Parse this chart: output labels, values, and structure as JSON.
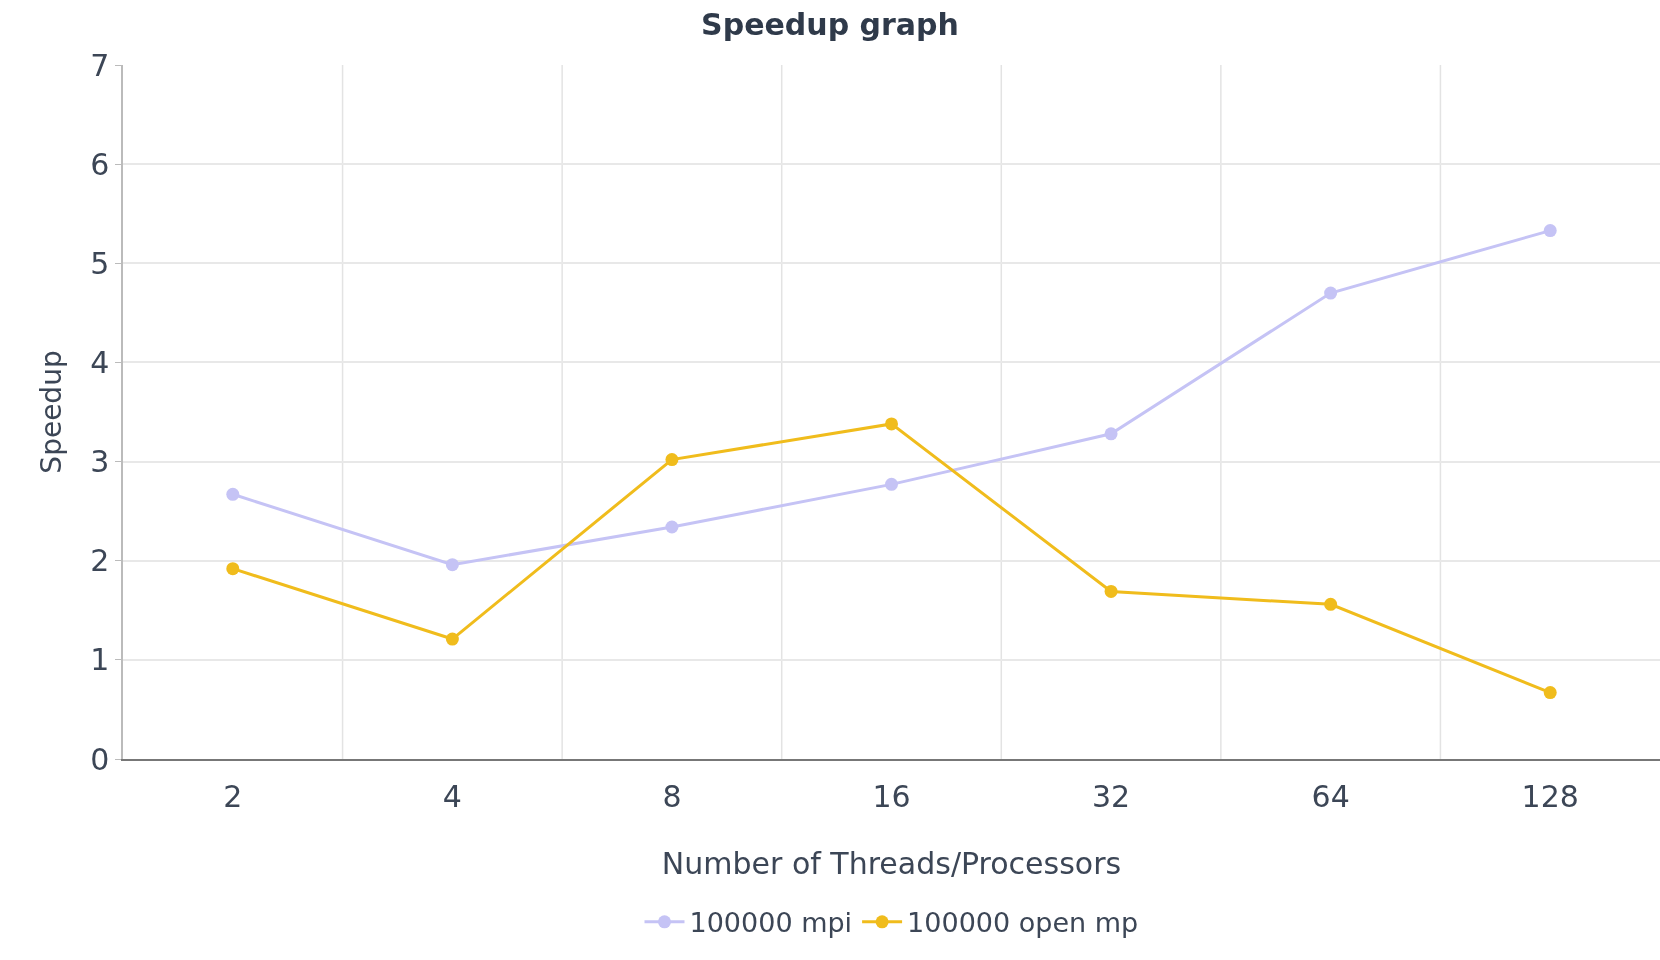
{
  "chart_data": {
    "type": "line",
    "title": "Speedup graph",
    "xlabel": "Number of Threads/Processors",
    "ylabel": "Speedup",
    "categories": [
      "2",
      "4",
      "8",
      "16",
      "32",
      "64",
      "128"
    ],
    "series": [
      {
        "name": "100000 mpi",
        "color": "#c5c3f5",
        "values": [
          2.67,
          1.96,
          2.34,
          2.77,
          3.28,
          4.7,
          5.33
        ]
      },
      {
        "name": "100000 open mp",
        "color": "#f0bc1c",
        "values": [
          1.92,
          1.21,
          3.02,
          3.38,
          1.69,
          1.56,
          0.67
        ]
      }
    ],
    "ylim": [
      0,
      7
    ],
    "yticks": [
      0,
      1,
      2,
      3,
      4,
      5,
      6,
      7
    ],
    "grid": true,
    "legend": "bottom",
    "marker": "circle",
    "line_style": "solid"
  }
}
